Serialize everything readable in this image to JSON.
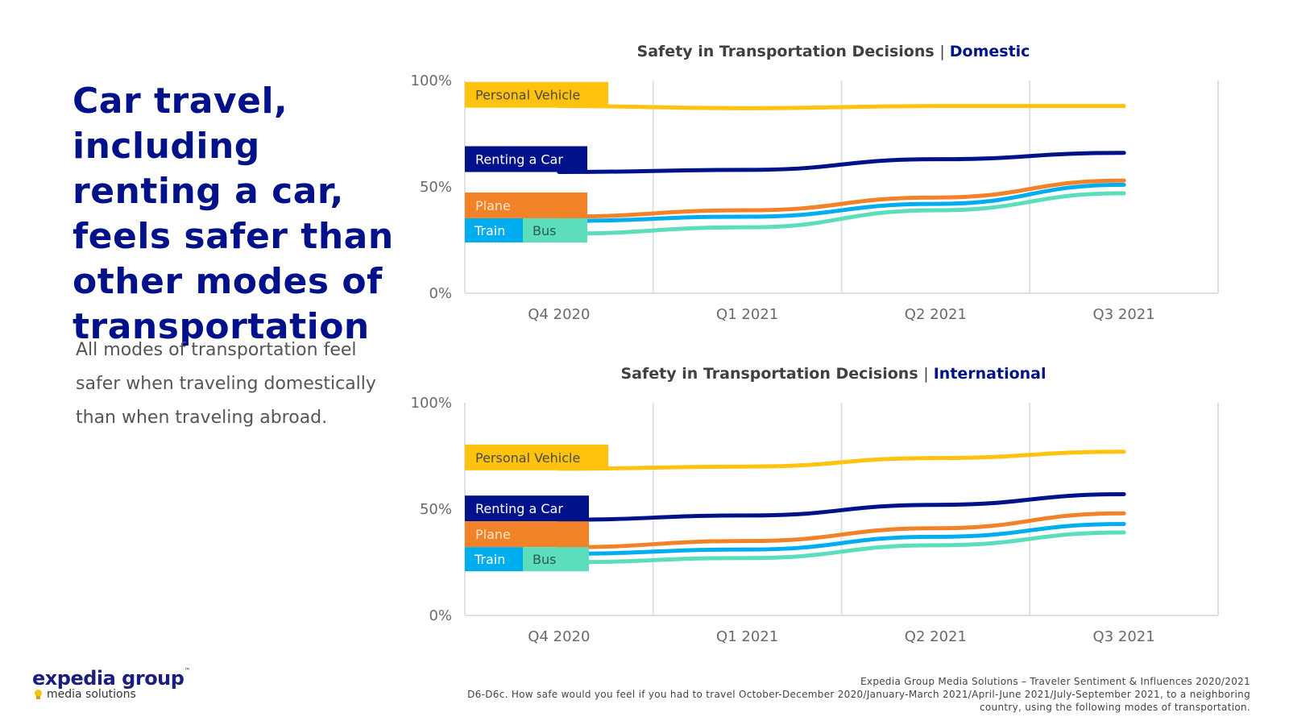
{
  "headline": "Car travel, including renting a car, feels safer than other modes of transportation",
  "subtext": "All modes of transportation feel safer when traveling domestically than when traveling abroad.",
  "colors": {
    "headline": "#00118a",
    "grid": "#e0e0e0",
    "Personal Vehicle": "#ffc20e",
    "Renting a Car": "#00128a",
    "Plane": "#f28227",
    "Train": "#00aef0",
    "Bus": "#5cdebc"
  },
  "logo": {
    "main": "expedia group",
    "tm": "™",
    "sub": "media solutions"
  },
  "footer": {
    "source": "Expedia Group Media Solutions – Traveler Sentiment & Influences 2020/2021",
    "question": "D6-D6c. How safe would you feel if you had to travel October-December 2020/January-March 2021/April-June 2021/July-September 2021, to a neighboring country, using the following modes of transportation."
  },
  "chart_data": [
    {
      "type": "line",
      "title": "Safety in Transportation Decisions",
      "title_separator": "|",
      "title_highlight": "Domestic",
      "xlabel": "",
      "ylabel": "",
      "categories": [
        "Q4 2020",
        "Q1 2021",
        "Q2 2021",
        "Q3 2021"
      ],
      "ylim": [
        0,
        100
      ],
      "yticks": [
        "0%",
        "50%",
        "100%"
      ],
      "ytick_values": [
        0,
        50,
        100
      ],
      "grid": "vertical",
      "legend": "left (labels at series start)",
      "series": [
        {
          "name": "Personal Vehicle",
          "values": [
            88,
            87,
            88,
            88
          ]
        },
        {
          "name": "Renting a Car",
          "values": [
            57,
            58,
            63,
            66
          ]
        },
        {
          "name": "Plane",
          "values": [
            36,
            39,
            45,
            53
          ]
        },
        {
          "name": "Train",
          "values": [
            34,
            36,
            42,
            51
          ]
        },
        {
          "name": "Bus",
          "values": [
            28,
            31,
            39,
            47
          ]
        }
      ]
    },
    {
      "type": "line",
      "title": "Safety in Transportation Decisions",
      "title_separator": "|",
      "title_highlight": "International",
      "xlabel": "",
      "ylabel": "",
      "categories": [
        "Q4 2020",
        "Q1 2021",
        "Q2 2021",
        "Q3 2021"
      ],
      "ylim": [
        0,
        100
      ],
      "yticks": [
        "0%",
        "50%",
        "100%"
      ],
      "ytick_values": [
        0,
        50,
        100
      ],
      "grid": "vertical",
      "legend": "left (labels at series start)",
      "series": [
        {
          "name": "Personal Vehicle",
          "values": [
            69,
            70,
            74,
            77
          ]
        },
        {
          "name": "Renting a Car",
          "values": [
            45,
            47,
            52,
            57
          ]
        },
        {
          "name": "Plane",
          "values": [
            32,
            35,
            41,
            48
          ]
        },
        {
          "name": "Train",
          "values": [
            29,
            31,
            37,
            43
          ]
        },
        {
          "name": "Bus",
          "values": [
            25,
            27,
            33,
            39
          ]
        }
      ]
    }
  ]
}
